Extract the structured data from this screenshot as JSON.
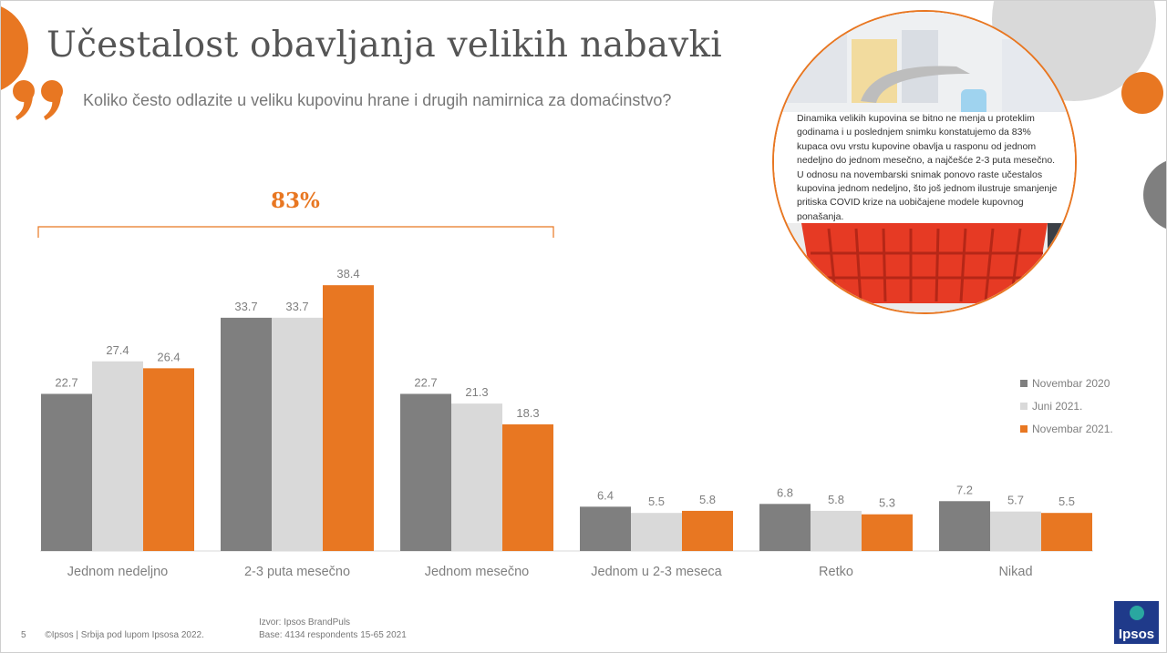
{
  "title": "Učestalost obavljanja velikih nabavki",
  "subtitle": "Koliko često odlazite u veliku kupovinu hrane i drugih namirnica za domaćinstvo?",
  "highlight": {
    "label": "83%"
  },
  "callout": {
    "text": "Dinamika velikih kupovina se bitno ne menja u proteklim godinama i u poslednjem snimku konstatujemo da 83% kupaca ovu vrstu kupovine obavlja u rasponu od jednom nedeljno do jednom mesečno, a najčešće 2-3 puta mesečno. U odnosu na novembarski snimak ponovo raste učestalos kupovina jednom nedeljno, što još jednom ilustruje smanjenje pritiska COVID krize na uobičajene modele kupovnog ponašanja."
  },
  "footer": {
    "page_number": "5",
    "copyright": "©Ipsos | Srbija pod lupom Ipsosa 2022.",
    "source": "Izvor: Ipsos BrandPuls",
    "base": "Base: 4134 respondents 15-65 2021"
  },
  "logo": {
    "text": "Ipsos"
  },
  "colors": {
    "accent": "#e87722",
    "dark_gray": "#7f7f7f",
    "light_gray": "#d9d9d9",
    "text_gray": "#777777"
  },
  "icons": {
    "quote": "quote-icon"
  },
  "chart_data": {
    "type": "bar",
    "categories": [
      "Jednom nedeljno",
      "2-3 puta mesečno",
      "Jednom mesečno",
      "Jednom u 2-3 meseca",
      "Retko",
      "Nikad"
    ],
    "series": [
      {
        "name": "Novembar 2020",
        "color": "#7f7f7f",
        "values": [
          22.7,
          33.7,
          22.7,
          6.4,
          6.8,
          7.2
        ]
      },
      {
        "name": "Juni 2021.",
        "color": "#d9d9d9",
        "values": [
          27.4,
          33.7,
          21.3,
          5.5,
          5.8,
          5.7
        ]
      },
      {
        "name": "Novembar 2021.",
        "color": "#e87722",
        "values": [
          26.4,
          38.4,
          18.3,
          5.8,
          5.3,
          5.5
        ]
      }
    ],
    "value_labels": [
      [
        "22.7",
        "33.7",
        "22.7",
        "6.4",
        "6.8",
        "7.2"
      ],
      [
        "27.4",
        "33.7",
        "21.3",
        "5.5",
        "5.8",
        "5.7"
      ],
      [
        "26.4",
        "38.4",
        "18.3",
        "5.8",
        "5.3",
        "5.5"
      ]
    ],
    "ylim": [
      0,
      40
    ],
    "grid": false,
    "legend": "right"
  }
}
